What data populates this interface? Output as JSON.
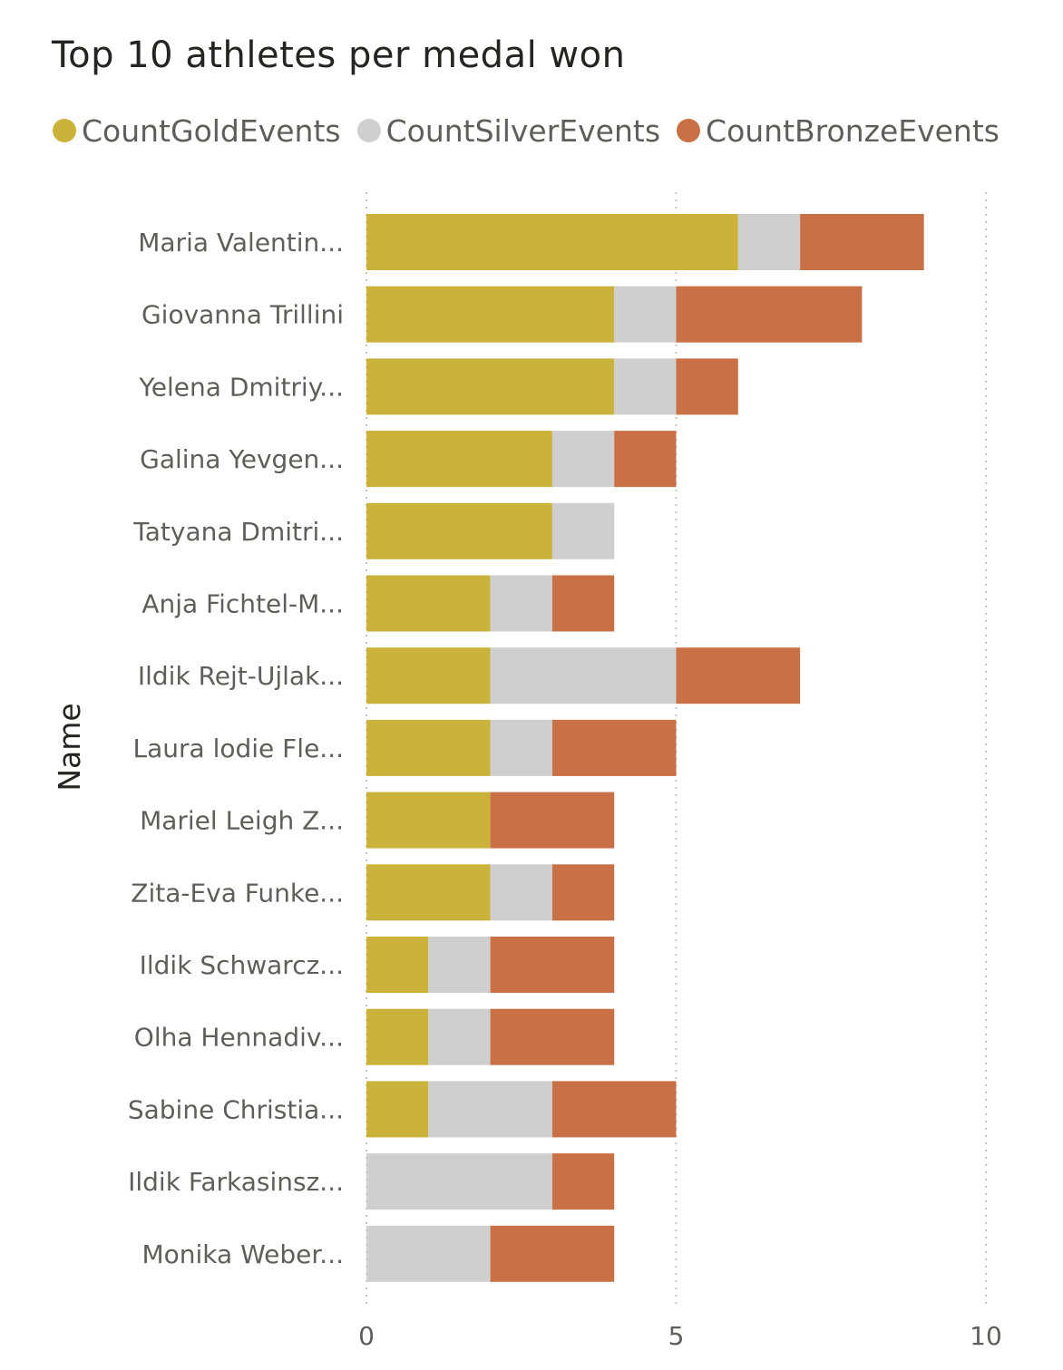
{
  "chart_data": {
    "type": "bar",
    "orientation": "horizontal",
    "stacked": true,
    "title": "Top 10 athletes per medal won",
    "ylabel": "Name",
    "xlabel": "",
    "xlim": [
      0,
      10
    ],
    "xticks": [
      0,
      5,
      10
    ],
    "grid": "vertical-dotted",
    "legend_position": "top-left",
    "categories": [
      "Maria Valentin...",
      "Giovanna Trillini",
      "Yelena Dmitriy...",
      "Galina Yevgen...",
      "Tatyana Dmitri...",
      "Anja Fichtel-M...",
      "Ildik Rejt-Ujlak...",
      "Laura lodie Fle...",
      "Mariel Leigh Z...",
      "Zita-Eva Funke...",
      "Ildik Schwarcz...",
      "Olha Hennadiv...",
      "Sabine Christia...",
      "Ildik Farkasinsz...",
      "Monika Weber..."
    ],
    "series": [
      {
        "name": "CountGoldEvents",
        "color": "#CBB23A",
        "values": [
          6,
          4,
          4,
          3,
          3,
          2,
          2,
          2,
          2,
          2,
          1,
          1,
          1,
          0,
          0
        ]
      },
      {
        "name": "CountSilverEvents",
        "color": "#CFCFCF",
        "values": [
          1,
          1,
          1,
          1,
          1,
          1,
          3,
          1,
          0,
          1,
          1,
          1,
          2,
          3,
          2
        ]
      },
      {
        "name": "CountBronzeEvents",
        "color": "#C97047",
        "values": [
          2,
          3,
          1,
          1,
          0,
          1,
          2,
          2,
          2,
          1,
          2,
          2,
          2,
          1,
          2
        ]
      }
    ]
  }
}
